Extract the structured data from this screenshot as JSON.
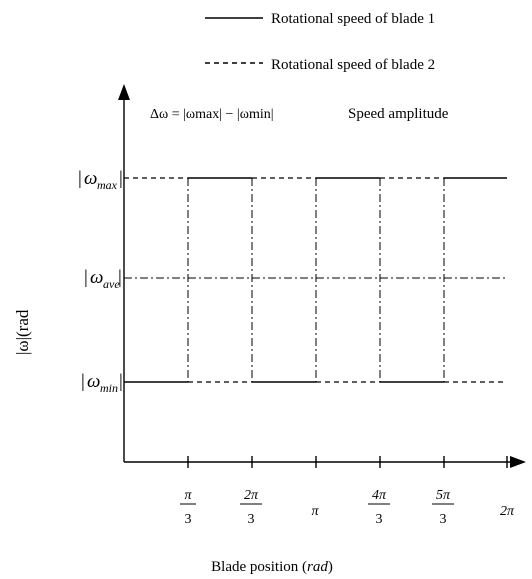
{
  "legend": {
    "solid_label": "Rotational speed of blade 1",
    "dashed_label": "Rotational speed of blade 2"
  },
  "annotation": {
    "delta_formula": "Δω = |ωmax| − |ωmin|",
    "delta_desc": "Speed amplitude"
  },
  "y_axis": {
    "label": "|ω|(rad",
    "levels": [
      {
        "id": "max",
        "base": "ω",
        "sub": "max"
      },
      {
        "id": "ave",
        "base": "ω",
        "sub": "ave"
      },
      {
        "id": "min",
        "base": "ω",
        "sub": "min"
      }
    ]
  },
  "x_axis": {
    "label_prefix": "Blade position (",
    "label_unit": "rad",
    "label_suffix": ")",
    "ticks": [
      {
        "num": "π",
        "den": "3"
      },
      {
        "num": "2π",
        "den": "3"
      },
      {
        "single": "π"
      },
      {
        "num": "4π",
        "den": "3"
      },
      {
        "num": "5π",
        "den": "3"
      },
      {
        "single": "2π"
      }
    ]
  },
  "blade1_pattern": [
    "min",
    "max",
    "min",
    "max",
    "min",
    "max"
  ],
  "blade2_pattern": [
    "max",
    "min",
    "max",
    "min",
    "max",
    "min"
  ],
  "colors": {
    "ink": "#000000",
    "background": "#ffffff"
  }
}
